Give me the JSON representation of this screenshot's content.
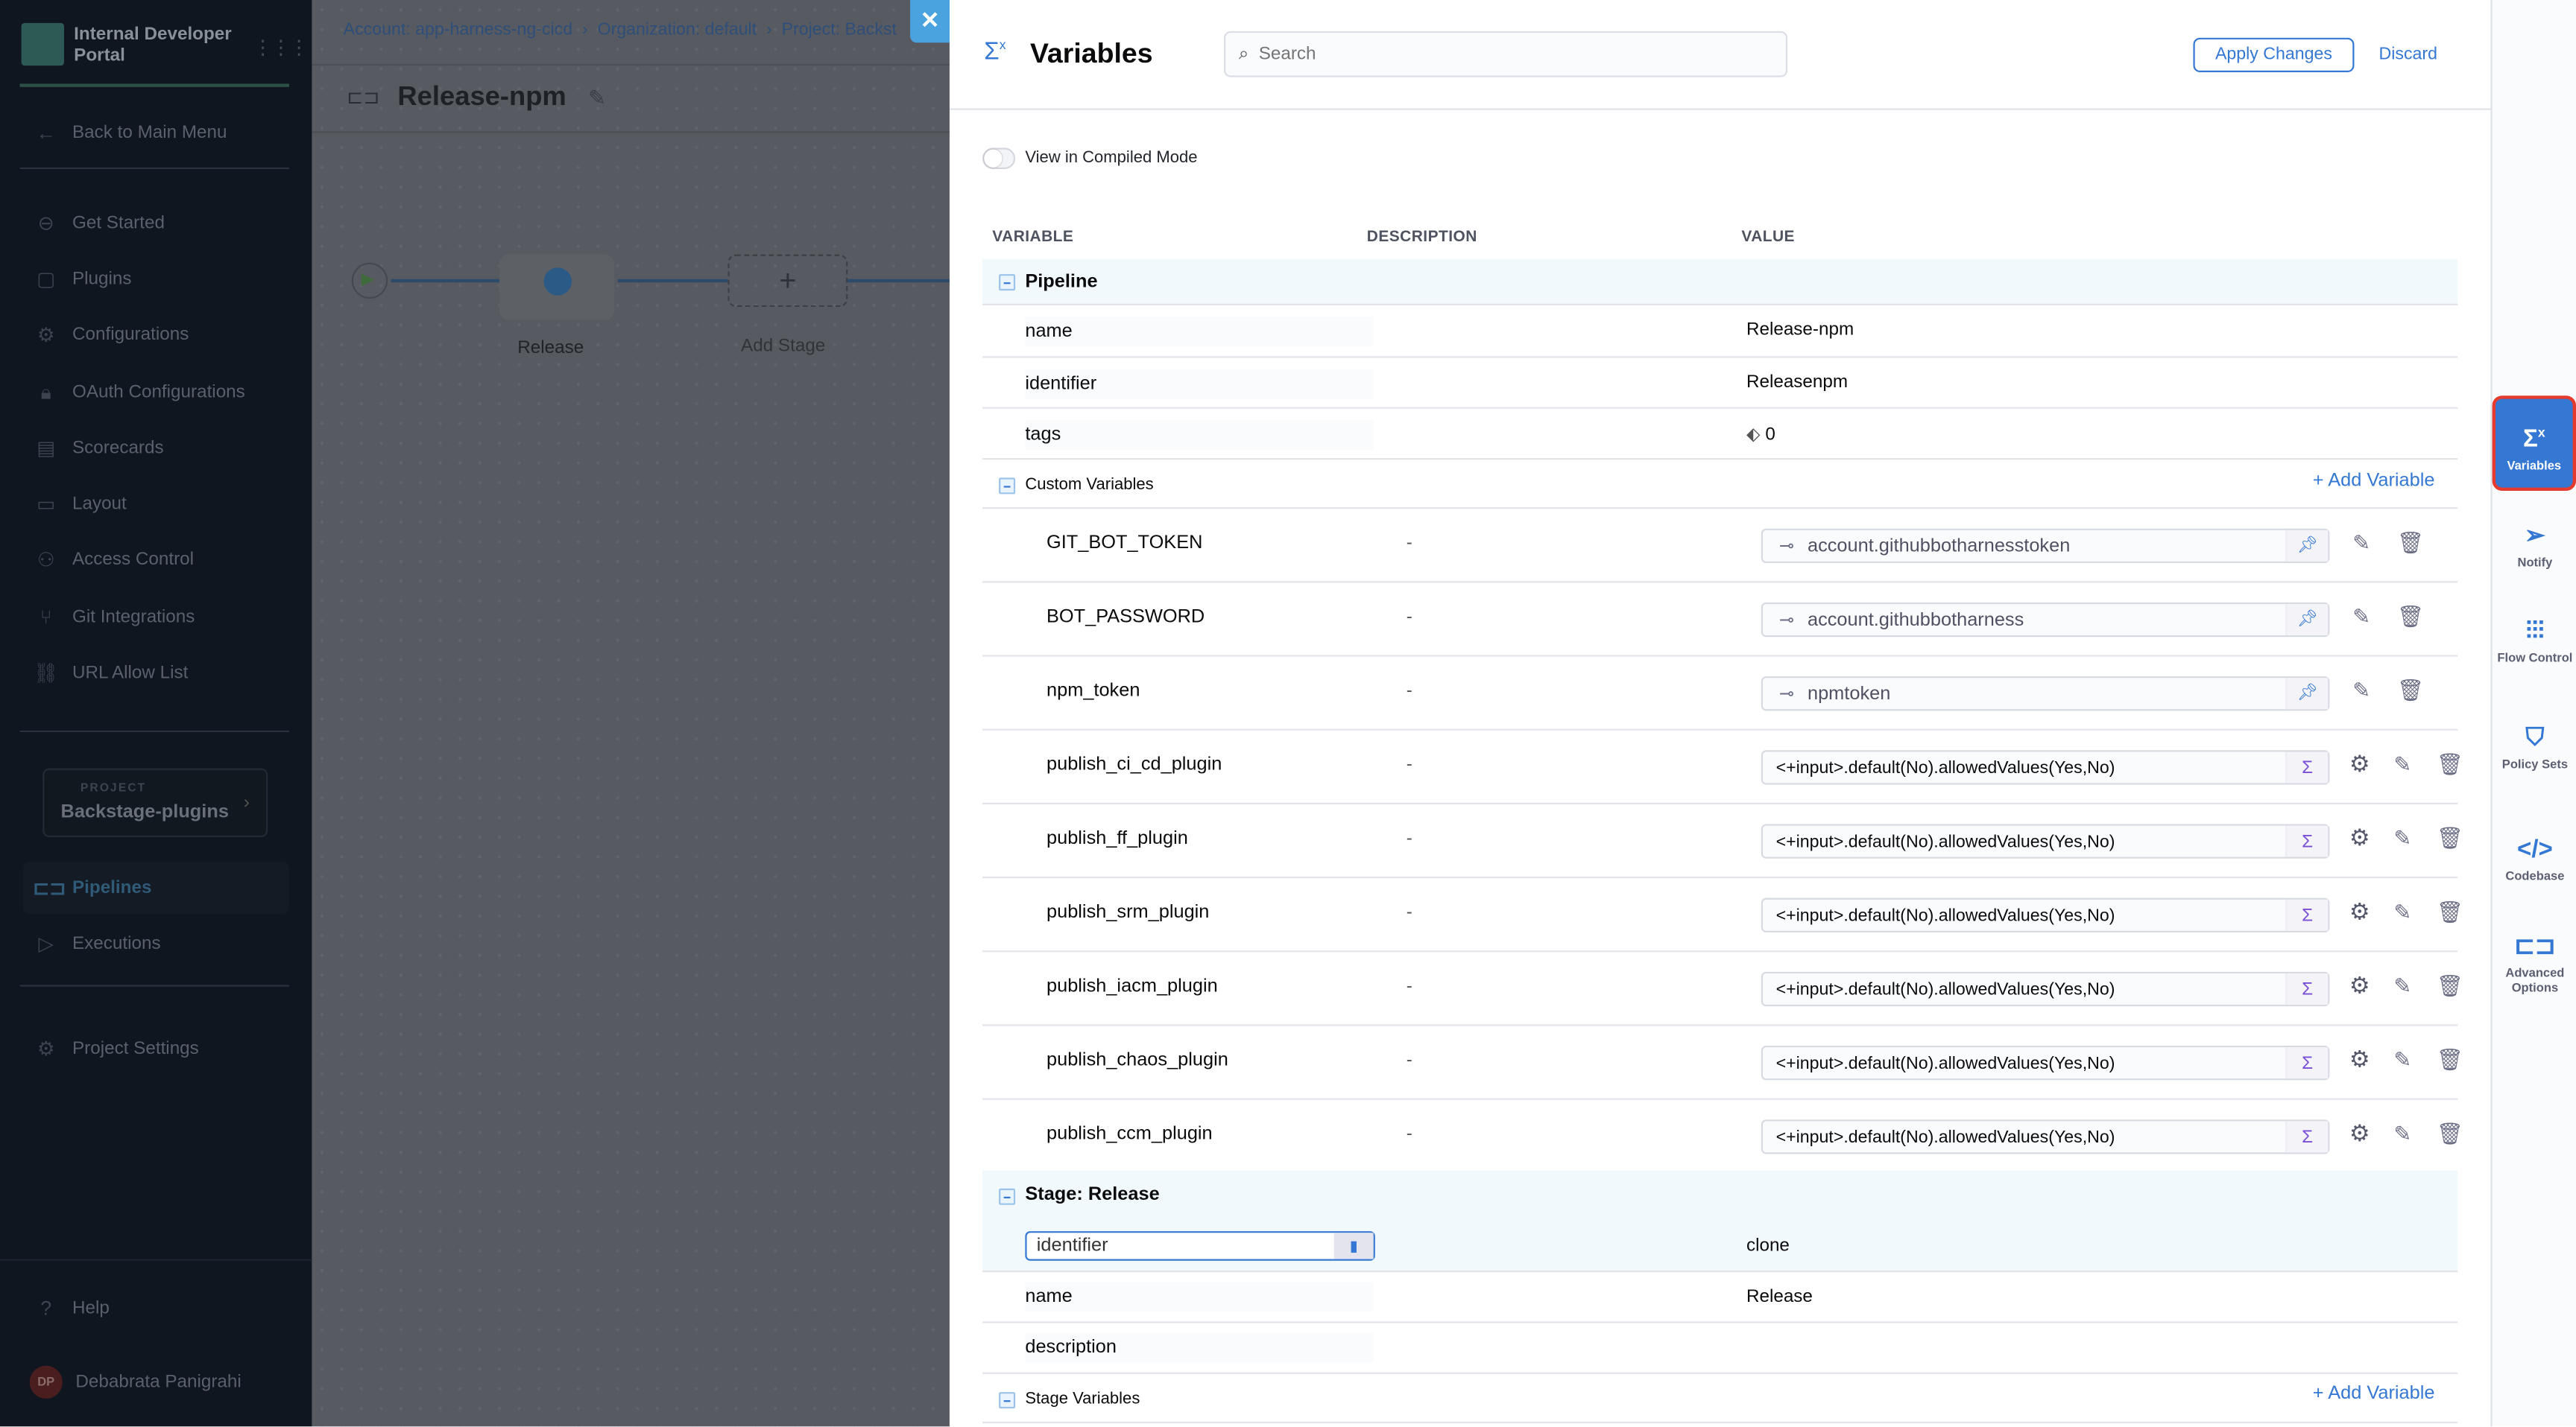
{
  "sidebar": {
    "brand": "Internal Developer Portal",
    "back": "Back to Main Menu",
    "items": [
      {
        "label": "Get Started",
        "icon": "get-started-icon"
      },
      {
        "label": "Plugins",
        "icon": "plugin-icon"
      },
      {
        "label": "Configurations",
        "icon": "gears-icon"
      },
      {
        "label": "OAuth Configurations",
        "icon": "lock-icon"
      },
      {
        "label": "Scorecards",
        "icon": "scorecard-icon"
      },
      {
        "label": "Layout",
        "icon": "layout-icon"
      },
      {
        "label": "Access Control",
        "icon": "user-icon"
      },
      {
        "label": "Git Integrations",
        "icon": "git-icon"
      },
      {
        "label": "URL Allow List",
        "icon": "link-icon"
      }
    ],
    "project_label": "PROJECT",
    "project_name": "Backstage-plugins",
    "pipelines": "Pipelines",
    "executions": "Executions",
    "project_settings": "Project Settings",
    "help": "Help",
    "user_initials": "DP",
    "user_name": "Debabrata Panigrahi"
  },
  "canvas": {
    "breadcrumb": [
      "Account: app-harness-ng-cicd",
      "Organization: default",
      "Project: Backst"
    ],
    "pipeline_title": "Release-npm",
    "stage_label": "Release",
    "add_stage": "Add Stage"
  },
  "drawer": {
    "title": "Variables",
    "search_placeholder": "Search",
    "apply": "Apply Changes",
    "discard": "Discard",
    "compiled_mode": "View in Compiled Mode",
    "compiled_mode_on": false,
    "columns": [
      "VARIABLE",
      "DESCRIPTION",
      "VALUE"
    ],
    "pipeline_section": "Pipeline",
    "pipeline_rows": [
      {
        "name": "name",
        "value": "Release-npm"
      },
      {
        "name": "identifier",
        "value": "Releasenpm"
      },
      {
        "name": "tags",
        "value": "0"
      }
    ],
    "custom_section": "Custom Variables",
    "add_variable": "Add Variable",
    "custom_rows": [
      {
        "name": "GIT_BOT_TOKEN",
        "desc": "-",
        "value": "account.githubbotharnesstoken",
        "type": "secret"
      },
      {
        "name": "BOT_PASSWORD",
        "desc": "-",
        "value": "account.githubbotharness",
        "type": "secret"
      },
      {
        "name": "npm_token",
        "desc": "-",
        "value": "npmtoken",
        "type": "secret"
      },
      {
        "name": "publish_ci_cd_plugin",
        "desc": "-",
        "value": "<+input>.default(No).allowedValues(Yes,No)",
        "type": "input"
      },
      {
        "name": "publish_ff_plugin",
        "desc": "-",
        "value": "<+input>.default(No).allowedValues(Yes,No)",
        "type": "input"
      },
      {
        "name": "publish_srm_plugin",
        "desc": "-",
        "value": "<+input>.default(No).allowedValues(Yes,No)",
        "type": "input"
      },
      {
        "name": "publish_iacm_plugin",
        "desc": "-",
        "value": "<+input>.default(No).allowedValues(Yes,No)",
        "type": "input"
      },
      {
        "name": "publish_chaos_plugin",
        "desc": "-",
        "value": "<+input>.default(No).allowedValues(Yes,No)",
        "type": "input"
      },
      {
        "name": "publish_ccm_plugin",
        "desc": "-",
        "value": "<+input>.default(No).allowedValues(Yes,No)",
        "type": "input"
      }
    ],
    "stage_section": "Stage: Release",
    "stage_identifier": {
      "name": "identifier",
      "value": "clone"
    },
    "stage_rows": [
      {
        "name": "name",
        "value": "Release"
      },
      {
        "name": "description",
        "value": ""
      }
    ],
    "stage_vars_section": "Stage Variables"
  },
  "rail": [
    {
      "label": "Variables",
      "icon": "variables-icon",
      "selected": true
    },
    {
      "label": "Notify",
      "icon": "paper-plane-icon"
    },
    {
      "label": "Flow Control",
      "icon": "sliders-icon"
    },
    {
      "label": "Policy Sets",
      "icon": "shield-check-icon"
    },
    {
      "label": "Codebase",
      "icon": "code-icon"
    },
    {
      "label": "Advanced Options",
      "icon": "advanced-options-icon"
    }
  ],
  "colors": {
    "accent": "#3478d4",
    "close": "#4aa3df",
    "highlight": "#e53a2e",
    "section_bg": "#f1f9fc"
  }
}
